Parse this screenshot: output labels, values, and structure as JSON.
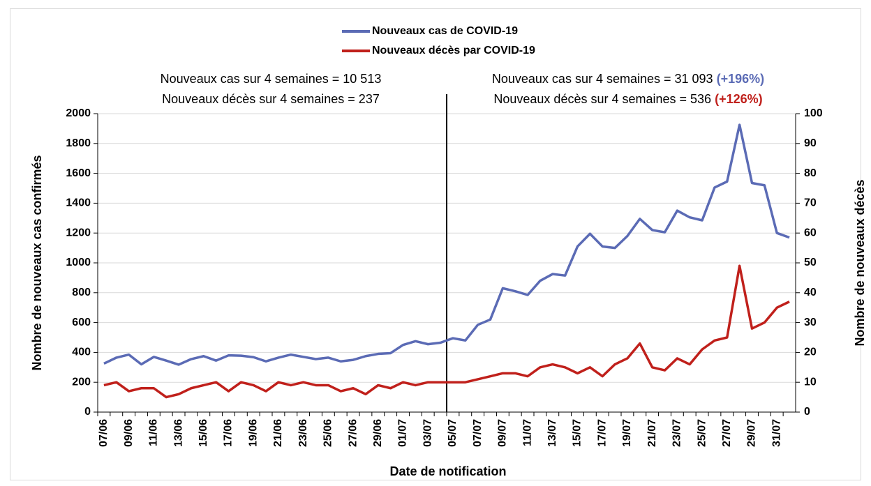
{
  "chart_data": {
    "type": "line",
    "legend": "top",
    "grid": true,
    "xlabel": "Date de notification",
    "ylabel": "Nombre de nouveaux cas confirmés",
    "y2label": "Nombre de nouveaux  décès",
    "annotations": {
      "left_cases": "Nouveaux cas sur 4 semaines = 10 513",
      "left_deaths": "Nouveaux décès sur 4 semaines = 237",
      "right_cases": "Nouveaux cas sur 4 semaines = 31 093",
      "right_cases_change": "(+196%)",
      "right_deaths": "Nouveaux décès sur 4 semaines = 536",
      "right_deaths_change": "(+126%)"
    },
    "categories": [
      "07/06",
      null,
      "09/06",
      null,
      "11/06",
      null,
      "13/06",
      null,
      "15/06",
      null,
      "17/06",
      null,
      "19/06",
      null,
      "21/06",
      null,
      "23/06",
      null,
      "25/06",
      null,
      "27/06",
      null,
      "29/06",
      null,
      "01/07",
      null,
      "03/07",
      null,
      "05/07",
      null,
      "07/07",
      null,
      "09/07",
      null,
      "11/07",
      null,
      "13/07",
      null,
      "15/07",
      null,
      "17/07",
      null,
      "19/07",
      null,
      "21/07",
      null,
      "23/07",
      null,
      "25/07",
      null,
      "27/07",
      null,
      "29/07",
      null,
      "31/07",
      null
    ],
    "ylim": [
      0,
      2000
    ],
    "yticks": [
      0,
      200,
      400,
      600,
      800,
      1000,
      1200,
      1400,
      1600,
      1800,
      2000
    ],
    "y2lim": [
      0,
      100
    ],
    "y2ticks": [
      0,
      10,
      20,
      30,
      40,
      50,
      60,
      70,
      80,
      90,
      100
    ],
    "series": [
      {
        "name": "Nouveaux cas de COVID-19",
        "color": "#5b6bb5",
        "values": [
          325,
          365,
          385,
          320,
          370,
          345,
          318,
          355,
          375,
          345,
          380,
          378,
          368,
          340,
          365,
          385,
          370,
          355,
          365,
          340,
          350,
          375,
          390,
          395,
          450,
          475,
          455,
          465,
          495,
          480,
          585,
          620,
          830,
          810,
          785,
          880,
          925,
          915,
          1110,
          1195,
          1110,
          1100,
          1180,
          1295,
          1220,
          1205,
          1350,
          1305,
          1285,
          1505,
          1545,
          1925,
          1535,
          1520,
          1200,
          1170
        ]
      },
      {
        "name": "Nouveaux décès par COVID-19",
        "color": "#c0201b",
        "axis": "y2",
        "values": [
          9,
          10,
          7,
          8,
          8,
          5,
          6,
          8,
          9,
          10,
          7,
          10,
          9,
          7,
          10,
          9,
          10,
          9,
          9,
          7,
          8,
          6,
          9,
          8,
          10,
          9,
          10,
          10,
          10,
          10,
          11,
          12,
          13,
          13,
          12,
          15,
          16,
          15,
          13,
          15,
          12,
          16,
          18,
          23,
          15,
          14,
          18,
          16,
          21,
          24,
          25,
          49,
          28,
          30,
          35,
          37
        ]
      }
    ]
  }
}
